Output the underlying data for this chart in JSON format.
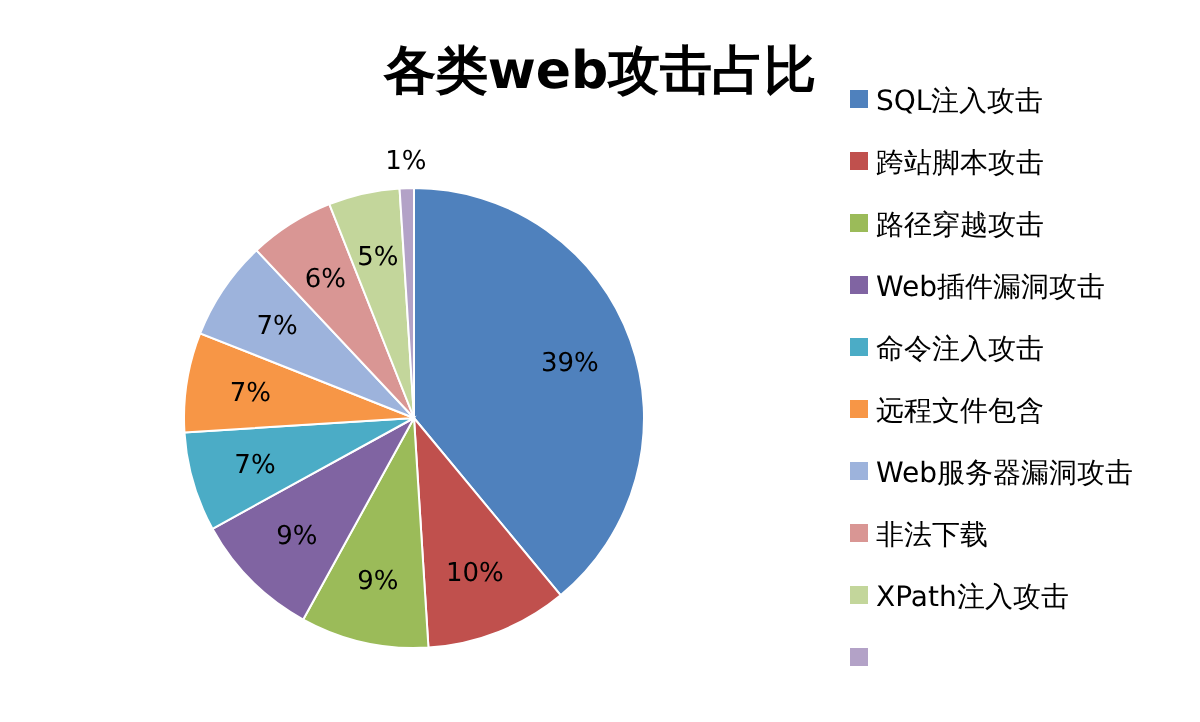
{
  "chart_data": {
    "type": "pie",
    "title": "各类web攻击占比",
    "categories": [
      "SQL注入攻击",
      "跨站脚本攻击",
      "路径穿越攻击",
      "Web插件漏洞攻击",
      "命令注入攻击",
      "远程文件包含",
      "Web服务器漏洞攻击",
      "非法下载",
      "XPath注入攻击",
      null
    ],
    "values": [
      39,
      10,
      9,
      9,
      7,
      7,
      7,
      6,
      5,
      1
    ],
    "colors": [
      "#4f81bd",
      "#c0504d",
      "#9bbb59",
      "#8064a2",
      "#4bacc6",
      "#f79646",
      "#9db3dc",
      "#d99694",
      "#c3d69b",
      "#b3a2c7"
    ],
    "value_labels": [
      "39%",
      "10%",
      "9%",
      "9%",
      "7%",
      "7%",
      "7%",
      "6%",
      "5%",
      "1%"
    ],
    "legend": "right"
  }
}
